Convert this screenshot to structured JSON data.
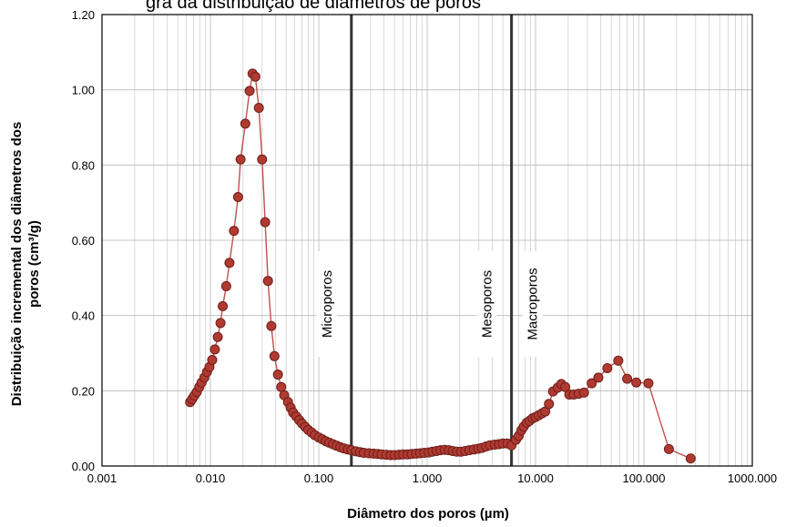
{
  "page": {
    "top_title": "gra  da  distribuição  de  diâmetros  de  poros"
  },
  "chart_data": {
    "type": "scatter",
    "title": "",
    "xlabel": "Diâmetro dos poros (µm)",
    "ylabel_line1": "Distribuição incremental dos diâmetros dos",
    "ylabel_line2": "poros (cm³/g)",
    "xscale": "log",
    "xlim": [
      0.001,
      1000
    ],
    "ylim": [
      0,
      1.2
    ],
    "x_ticks": [
      0.001,
      0.01,
      0.1,
      1,
      10,
      100,
      1000
    ],
    "x_tick_labels": [
      "0.001",
      "0.010",
      "0.100",
      "1.000",
      "10.000",
      "100.000",
      "1000.000"
    ],
    "y_ticks": [
      0,
      0.2,
      0.4,
      0.6,
      0.8,
      1.0,
      1.2
    ],
    "y_tick_labels": [
      "0.00",
      "0.20",
      "0.40",
      "0.60",
      "0.80",
      "1.00",
      "1.20"
    ],
    "grid": true,
    "legend": "none",
    "colors": {
      "marker_fill": "#b03a32",
      "marker_stroke": "#6e1f1a",
      "line": "#c0504d",
      "divider": "#333333",
      "grid": "#d0d0d0"
    },
    "dividers": [
      {
        "x": 0.2,
        "label": "Microporos",
        "label_side": "left"
      },
      {
        "x": 6,
        "label": "Mesoporos",
        "label_side": "left"
      },
      {
        "x": 6,
        "label": "Macroporos",
        "label_side": "right"
      }
    ],
    "series": [
      {
        "points": [
          [
            0.0065,
            0.17
          ],
          [
            0.0068,
            0.178
          ],
          [
            0.0071,
            0.187
          ],
          [
            0.0075,
            0.197
          ],
          [
            0.0079,
            0.21
          ],
          [
            0.0083,
            0.222
          ],
          [
            0.0088,
            0.235
          ],
          [
            0.0093,
            0.25
          ],
          [
            0.0098,
            0.263
          ],
          [
            0.0104,
            0.282
          ],
          [
            0.011,
            0.31
          ],
          [
            0.0117,
            0.343
          ],
          [
            0.0124,
            0.38
          ],
          [
            0.013,
            0.425
          ],
          [
            0.014,
            0.478
          ],
          [
            0.015,
            0.54
          ],
          [
            0.0165,
            0.625
          ],
          [
            0.018,
            0.715
          ],
          [
            0.019,
            0.815
          ],
          [
            0.021,
            0.91
          ],
          [
            0.023,
            0.997
          ],
          [
            0.0245,
            1.043
          ],
          [
            0.026,
            1.035
          ],
          [
            0.028,
            0.952
          ],
          [
            0.03,
            0.815
          ],
          [
            0.032,
            0.648
          ],
          [
            0.034,
            0.492
          ],
          [
            0.0365,
            0.372
          ],
          [
            0.039,
            0.292
          ],
          [
            0.042,
            0.243
          ],
          [
            0.045,
            0.21
          ],
          [
            0.048,
            0.188
          ],
          [
            0.052,
            0.17
          ],
          [
            0.055,
            0.155
          ],
          [
            0.058,
            0.142
          ],
          [
            0.062,
            0.132
          ],
          [
            0.066,
            0.122
          ],
          [
            0.07,
            0.113
          ],
          [
            0.075,
            0.104
          ],
          [
            0.08,
            0.096
          ],
          [
            0.086,
            0.089
          ],
          [
            0.092,
            0.082
          ],
          [
            0.1,
            0.076
          ],
          [
            0.108,
            0.071
          ],
          [
            0.116,
            0.066
          ],
          [
            0.125,
            0.062
          ],
          [
            0.135,
            0.058
          ],
          [
            0.146,
            0.054
          ],
          [
            0.158,
            0.05
          ],
          [
            0.17,
            0.047
          ],
          [
            0.185,
            0.044
          ],
          [
            0.2,
            0.042
          ],
          [
            0.22,
            0.039
          ],
          [
            0.24,
            0.037
          ],
          [
            0.26,
            0.035
          ],
          [
            0.29,
            0.034
          ],
          [
            0.32,
            0.033
          ],
          [
            0.35,
            0.032
          ],
          [
            0.38,
            0.031
          ],
          [
            0.42,
            0.03
          ],
          [
            0.46,
            0.029
          ],
          [
            0.5,
            0.029
          ],
          [
            0.55,
            0.03
          ],
          [
            0.6,
            0.031
          ],
          [
            0.66,
            0.031
          ],
          [
            0.72,
            0.032
          ],
          [
            0.79,
            0.033
          ],
          [
            0.86,
            0.034
          ],
          [
            0.94,
            0.035
          ],
          [
            1.03,
            0.036
          ],
          [
            1.12,
            0.038
          ],
          [
            1.22,
            0.04
          ],
          [
            1.33,
            0.042
          ],
          [
            1.45,
            0.043
          ],
          [
            1.58,
            0.042
          ],
          [
            1.72,
            0.04
          ],
          [
            1.88,
            0.038
          ],
          [
            2.05,
            0.038
          ],
          [
            2.25,
            0.04
          ],
          [
            2.45,
            0.042
          ],
          [
            2.7,
            0.044
          ],
          [
            2.95,
            0.046
          ],
          [
            3.2,
            0.048
          ],
          [
            3.5,
            0.052
          ],
          [
            3.8,
            0.055
          ],
          [
            4.2,
            0.057
          ],
          [
            4.6,
            0.058
          ],
          [
            5.0,
            0.06
          ],
          [
            5.5,
            0.06
          ],
          [
            6.0,
            0.055
          ],
          [
            6.6,
            0.07
          ],
          [
            7.0,
            0.08
          ],
          [
            7.4,
            0.095
          ],
          [
            7.8,
            0.105
          ],
          [
            8.3,
            0.115
          ],
          [
            8.8,
            0.12
          ],
          [
            9.4,
            0.127
          ],
          [
            10.0,
            0.13
          ],
          [
            10.7,
            0.135
          ],
          [
            11.5,
            0.14
          ],
          [
            12.3,
            0.145
          ],
          [
            13.3,
            0.165
          ],
          [
            14.5,
            0.198
          ],
          [
            16.0,
            0.208
          ],
          [
            17.3,
            0.218
          ],
          [
            18.8,
            0.21
          ],
          [
            20.5,
            0.19
          ],
          [
            22.5,
            0.19
          ],
          [
            25.0,
            0.192
          ],
          [
            28.0,
            0.195
          ],
          [
            33.0,
            0.22
          ],
          [
            38.0,
            0.235
          ],
          [
            46.0,
            0.26
          ],
          [
            58.0,
            0.28
          ],
          [
            70.0,
            0.232
          ],
          [
            85.0,
            0.222
          ],
          [
            110.0,
            0.22
          ],
          [
            170.0,
            0.045
          ],
          [
            270.0,
            0.02
          ]
        ]
      }
    ]
  }
}
